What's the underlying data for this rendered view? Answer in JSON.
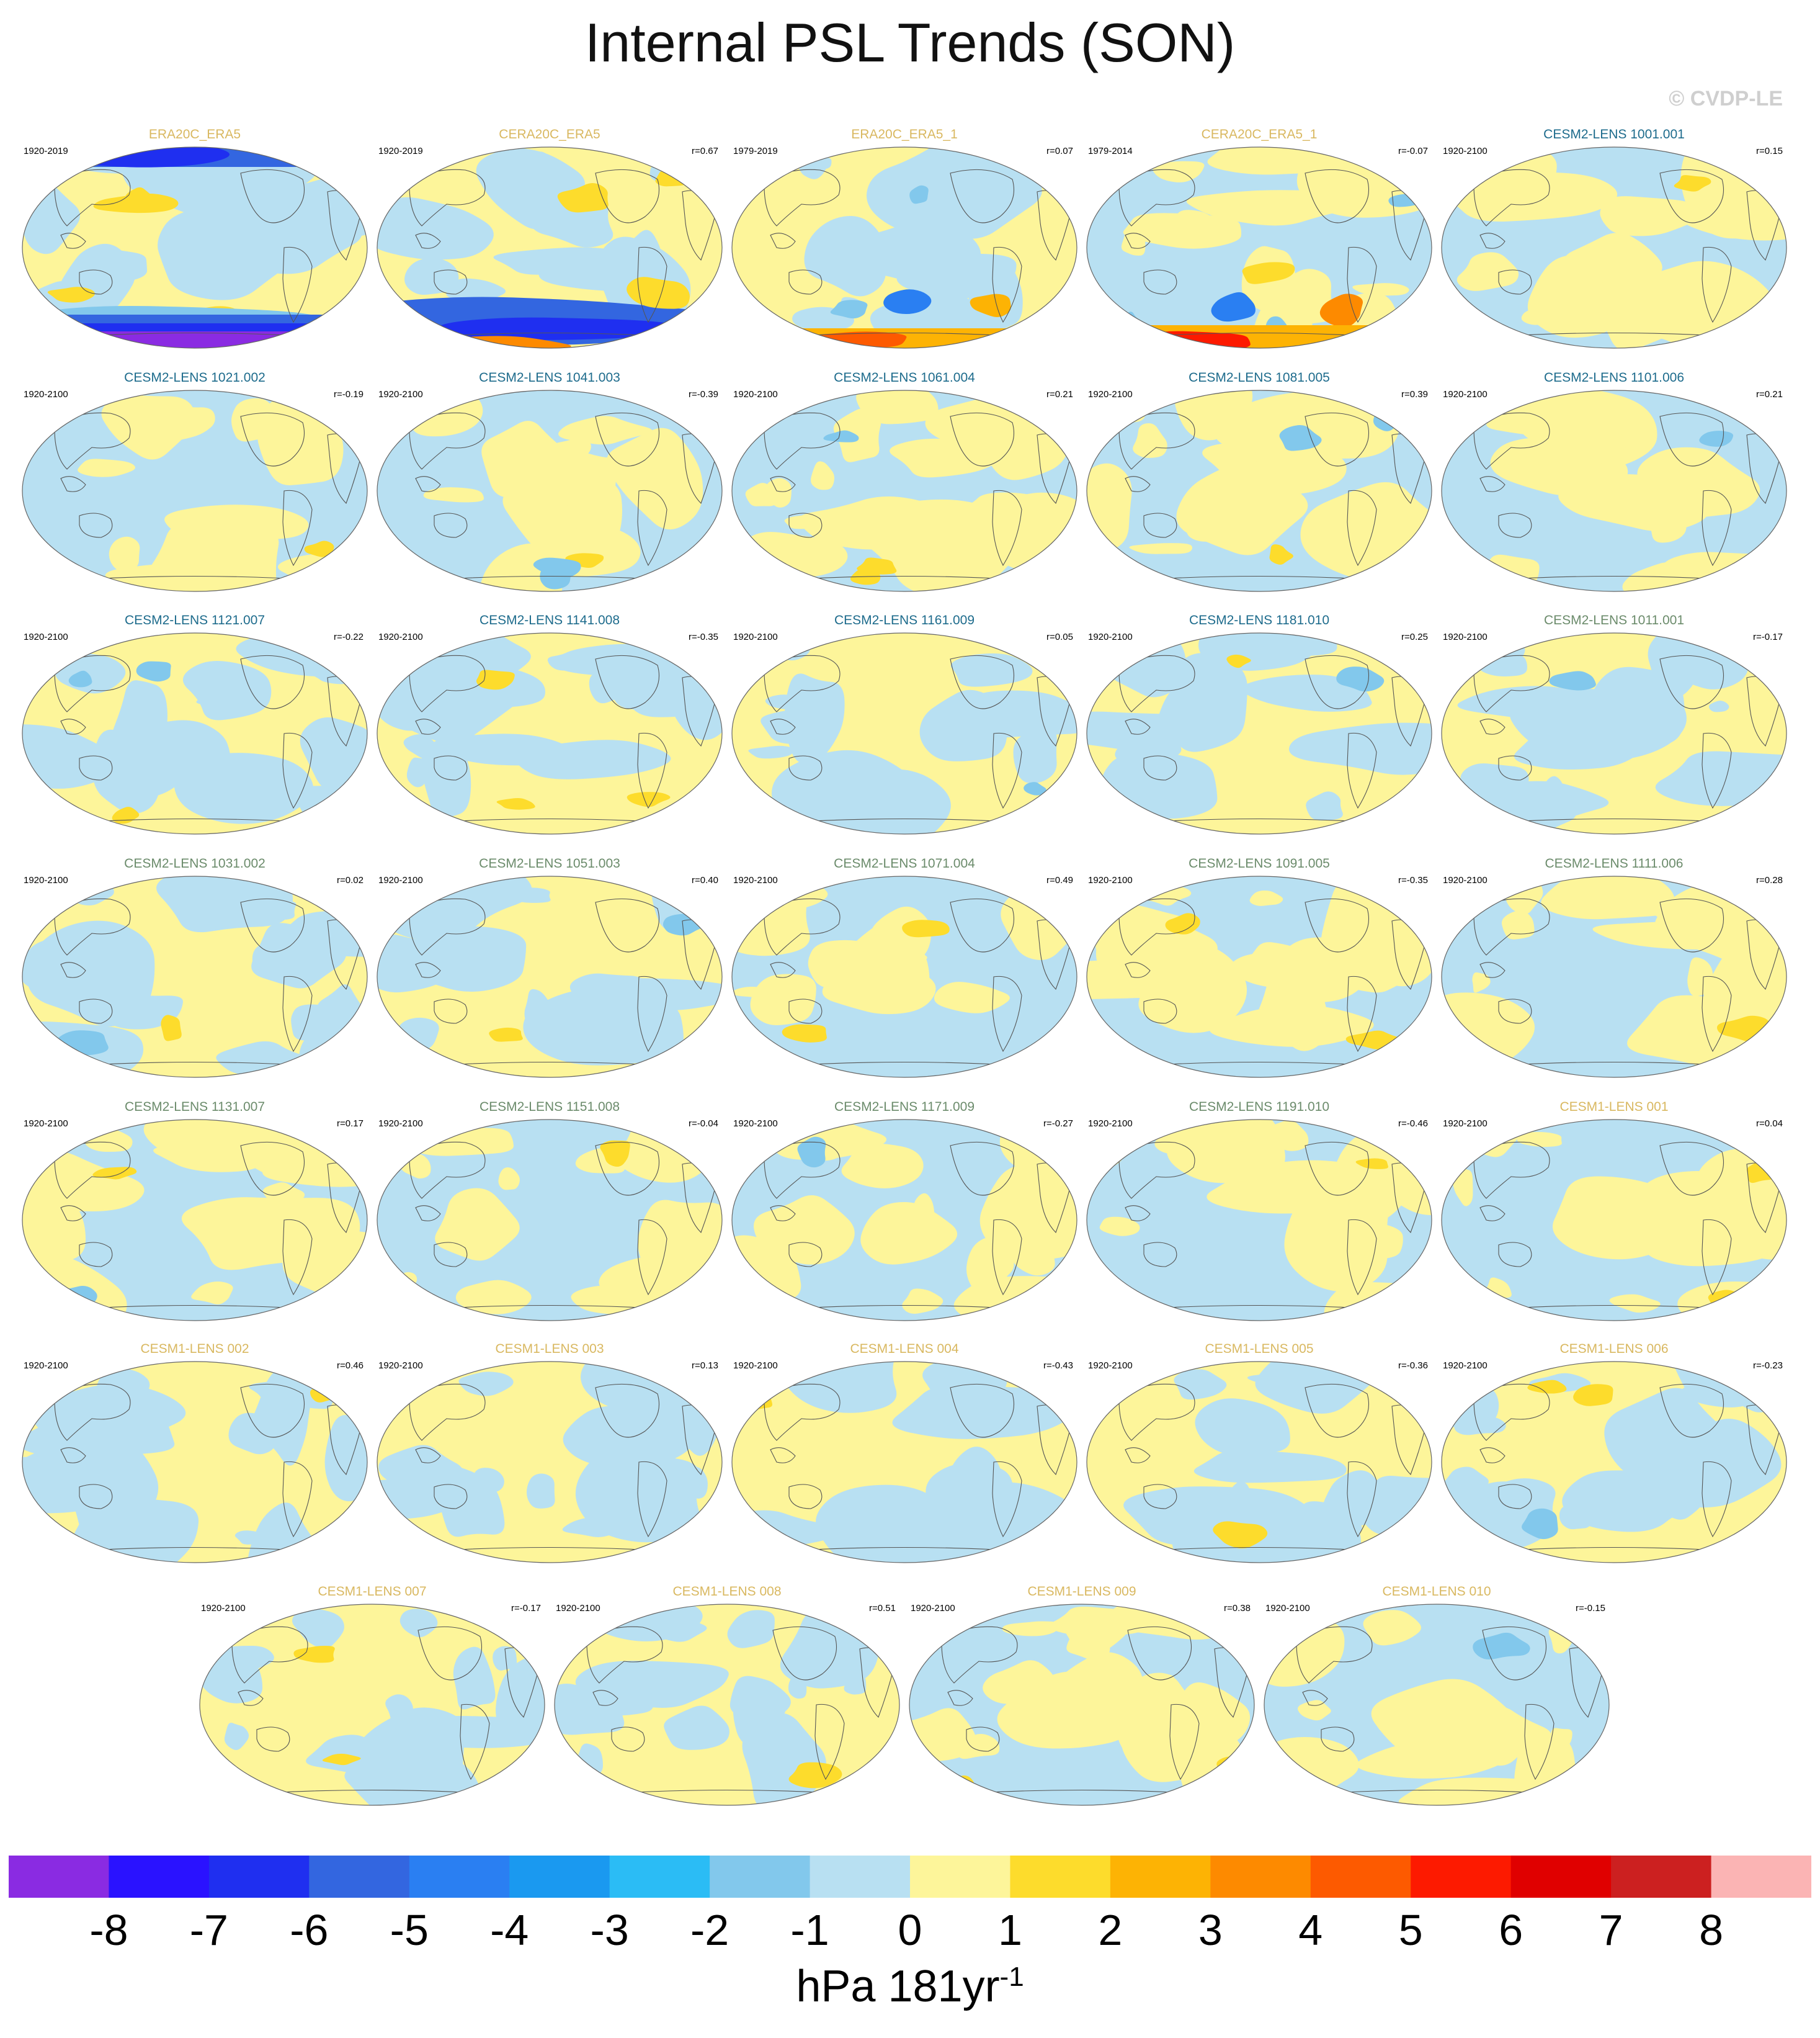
{
  "title": "Internal PSL Trends (SON)",
  "copyright": "© CVDP-LE",
  "panels": [
    {
      "name": "ERA20C_ERA5",
      "period": "1920-2019",
      "r": "",
      "type": "obs",
      "theme": "era20c"
    },
    {
      "name": "CERA20C_ERA5",
      "period": "1920-2019",
      "r": "r=0.67",
      "type": "obs",
      "theme": "cera"
    },
    {
      "name": "ERA20C_ERA5_1",
      "period": "1979-2019",
      "r": "r=0.07",
      "type": "obs",
      "theme": "era5a"
    },
    {
      "name": "CERA20C_ERA5_1",
      "period": "1979-2014",
      "r": "r=-0.07",
      "type": "obs",
      "theme": "era5b"
    },
    {
      "name": "CESM2-LENS 1001.001",
      "period": "1920-2100",
      "r": "r=0.15",
      "type": "cesm2a",
      "theme": "m"
    },
    {
      "name": "CESM2-LENS 1021.002",
      "period": "1920-2100",
      "r": "r=-0.19",
      "type": "cesm2a",
      "theme": "m"
    },
    {
      "name": "CESM2-LENS 1041.003",
      "period": "1920-2100",
      "r": "r=-0.39",
      "type": "cesm2a",
      "theme": "m"
    },
    {
      "name": "CESM2-LENS 1061.004",
      "period": "1920-2100",
      "r": "r=0.21",
      "type": "cesm2a",
      "theme": "m"
    },
    {
      "name": "CESM2-LENS 1081.005",
      "period": "1920-2100",
      "r": "r=0.39",
      "type": "cesm2a",
      "theme": "m"
    },
    {
      "name": "CESM2-LENS 1101.006",
      "period": "1920-2100",
      "r": "r=0.21",
      "type": "cesm2a",
      "theme": "m"
    },
    {
      "name": "CESM2-LENS 1121.007",
      "period": "1920-2100",
      "r": "r=-0.22",
      "type": "cesm2a",
      "theme": "m"
    },
    {
      "name": "CESM2-LENS 1141.008",
      "period": "1920-2100",
      "r": "r=-0.35",
      "type": "cesm2a",
      "theme": "m"
    },
    {
      "name": "CESM2-LENS 1161.009",
      "period": "1920-2100",
      "r": "r=0.05",
      "type": "cesm2a",
      "theme": "m"
    },
    {
      "name": "CESM2-LENS 1181.010",
      "period": "1920-2100",
      "r": "r=0.25",
      "type": "cesm2a",
      "theme": "m"
    },
    {
      "name": "CESM2-LENS 1011.001",
      "period": "1920-2100",
      "r": "r=-0.17",
      "type": "cesm2b",
      "theme": "m"
    },
    {
      "name": "CESM2-LENS 1031.002",
      "period": "1920-2100",
      "r": "r=0.02",
      "type": "cesm2b",
      "theme": "m"
    },
    {
      "name": "CESM2-LENS 1051.003",
      "period": "1920-2100",
      "r": "r=0.40",
      "type": "cesm2b",
      "theme": "m"
    },
    {
      "name": "CESM2-LENS 1071.004",
      "period": "1920-2100",
      "r": "r=0.49",
      "type": "cesm2b",
      "theme": "m"
    },
    {
      "name": "CESM2-LENS 1091.005",
      "period": "1920-2100",
      "r": "r=-0.35",
      "type": "cesm2b",
      "theme": "m"
    },
    {
      "name": "CESM2-LENS 1111.006",
      "period": "1920-2100",
      "r": "r=0.28",
      "type": "cesm2b",
      "theme": "m"
    },
    {
      "name": "CESM2-LENS 1131.007",
      "period": "1920-2100",
      "r": "r=0.17",
      "type": "cesm2b",
      "theme": "m"
    },
    {
      "name": "CESM2-LENS 1151.008",
      "period": "1920-2100",
      "r": "r=-0.04",
      "type": "cesm2b",
      "theme": "m"
    },
    {
      "name": "CESM2-LENS 1171.009",
      "period": "1920-2100",
      "r": "r=-0.27",
      "type": "cesm2b",
      "theme": "m"
    },
    {
      "name": "CESM2-LENS 1191.010",
      "period": "1920-2100",
      "r": "r=-0.46",
      "type": "cesm2b",
      "theme": "m"
    },
    {
      "name": "CESM1-LENS 001",
      "period": "1920-2100",
      "r": "r=0.04",
      "type": "cesm1",
      "theme": "m"
    },
    {
      "name": "CESM1-LENS 002",
      "period": "1920-2100",
      "r": "r=0.46",
      "type": "cesm1",
      "theme": "m"
    },
    {
      "name": "CESM1-LENS 003",
      "period": "1920-2100",
      "r": "r=0.13",
      "type": "cesm1",
      "theme": "m"
    },
    {
      "name": "CESM1-LENS 004",
      "period": "1920-2100",
      "r": "r=-0.43",
      "type": "cesm1",
      "theme": "m"
    },
    {
      "name": "CESM1-LENS 005",
      "period": "1920-2100",
      "r": "r=-0.36",
      "type": "cesm1",
      "theme": "m"
    },
    {
      "name": "CESM1-LENS 006",
      "period": "1920-2100",
      "r": "r=-0.23",
      "type": "cesm1",
      "theme": "m"
    },
    {
      "name": "CESM1-LENS 007",
      "period": "1920-2100",
      "r": "r=-0.17",
      "type": "cesm1",
      "theme": "m"
    },
    {
      "name": "CESM1-LENS 008",
      "period": "1920-2100",
      "r": "r=0.51",
      "type": "cesm1",
      "theme": "m"
    },
    {
      "name": "CESM1-LENS 009",
      "period": "1920-2100",
      "r": "r=0.38",
      "type": "cesm1",
      "theme": "m"
    },
    {
      "name": "CESM1-LENS 010",
      "period": "1920-2100",
      "r": "r=-0.15",
      "type": "cesm1",
      "theme": "m"
    }
  ],
  "title_colors": {
    "obs": "#d9b860",
    "cesm2a": "#1d6b8c",
    "cesm2b": "#6b8b6b",
    "cesm1": "#d9b860"
  },
  "colorbar": {
    "colors": [
      "#8a2be2",
      "#2a12ff",
      "#1f2ff0",
      "#3366e0",
      "#2a7ff2",
      "#1a99f0",
      "#2bbcf5",
      "#82c8ec",
      "#b8e0f2",
      "#fdf59a",
      "#fddc2c",
      "#fdb304",
      "#fd8a00",
      "#fd5a00",
      "#fd1a00",
      "#e00000",
      "#cc2020",
      "#fbb4b4"
    ],
    "labels": [
      "-8",
      "-7",
      "-6",
      "-5",
      "-4",
      "-3",
      "-2",
      "-1",
      "0",
      "1",
      "2",
      "3",
      "4",
      "5",
      "6",
      "7",
      "8"
    ]
  },
  "units": {
    "text": "hPa 181yr",
    "sup": "-1"
  }
}
